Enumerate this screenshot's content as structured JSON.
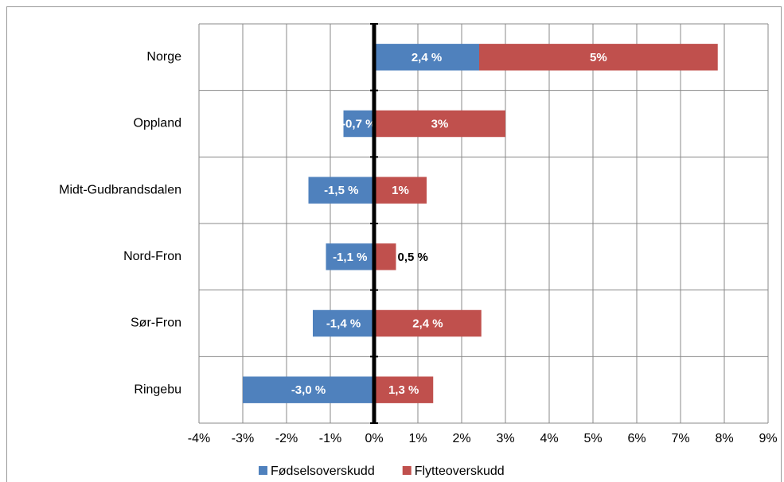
{
  "chart_data": {
    "type": "bar",
    "orientation": "horizontal",
    "stacked": true,
    "categories": [
      "Norge",
      "Oppland",
      "Midt-Gudbrandsdalen",
      "Nord-Fron",
      "Sør-Fron",
      "Ringebu"
    ],
    "series": [
      {
        "name": "Fødselsoverskudd",
        "color": "#4f81bd",
        "values": [
          2.4,
          -0.7,
          -1.5,
          -1.1,
          -1.4,
          -3.0
        ],
        "value_labels": [
          "2,4 %",
          "-0,7 %",
          "-1,5 %",
          "-1,1 %",
          "-1,4 %",
          "-3,0 %"
        ]
      },
      {
        "name": "Flytteoverskudd",
        "color": "#c0504d",
        "values": [
          5.45,
          3.0,
          1.2,
          0.5,
          2.45,
          1.35
        ],
        "value_labels": [
          "5%",
          "3%",
          "1%",
          "0,5 %",
          "2,4 %",
          "1,3 %"
        ]
      }
    ],
    "xlim": [
      -4,
      9
    ],
    "xticks": [
      {
        "value": -4,
        "label": "-4%"
      },
      {
        "value": -3,
        "label": "-3%"
      },
      {
        "value": -2,
        "label": "-2%"
      },
      {
        "value": -1,
        "label": "-1%"
      },
      {
        "value": 0,
        "label": "0%"
      },
      {
        "value": 1,
        "label": "1%"
      },
      {
        "value": 2,
        "label": "2%"
      },
      {
        "value": 3,
        "label": "3%"
      },
      {
        "value": 4,
        "label": "4%"
      },
      {
        "value": 5,
        "label": "5%"
      },
      {
        "value": 6,
        "label": "6%"
      },
      {
        "value": 7,
        "label": "7%"
      },
      {
        "value": 8,
        "label": "8%"
      },
      {
        "value": 9,
        "label": "9%"
      }
    ],
    "grid": true,
    "legend": "bottom"
  }
}
